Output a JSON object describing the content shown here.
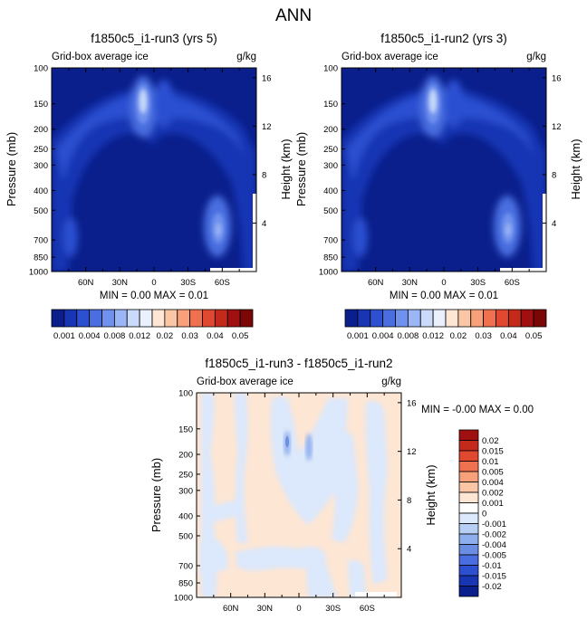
{
  "page_title": "ANN",
  "chart_data": [
    {
      "type": "heatmap",
      "title": "f1850c5_i1-run3 (yrs 5)",
      "subtitle_left": "Grid-box average ice",
      "subtitle_right": "g/kg",
      "ylabel": "Pressure (mb)",
      "ylabel_right": "Height (km)",
      "y_ticks": [
        "100",
        "150",
        "200",
        "250",
        "300",
        "400",
        "500",
        "700",
        "850",
        "1000"
      ],
      "y_right_ticks": [
        "16",
        "12",
        "8",
        "4"
      ],
      "x_ticks": [
        "60N",
        "30N",
        "0",
        "30S",
        "60S"
      ],
      "min_max": "MIN =  0.00  MAX =  0.01",
      "colorbar_labels": [
        "0.001",
        "0.004",
        "0.008",
        "0.012",
        "0.02",
        "0.03",
        "0.04",
        "0.05"
      ],
      "colorbar_colors": [
        "#0a1f8c",
        "#1836b4",
        "#2c50d0",
        "#4a6ee0",
        "#7092ee",
        "#9cb6f5",
        "#c9dafa",
        "#eaf1fd",
        "#fde6d4",
        "#fbc6a6",
        "#f7a07a",
        "#f07150",
        "#e04830",
        "#c42a1c",
        "#a01010",
        "#7a0606"
      ]
    },
    {
      "type": "heatmap",
      "title": "f1850c5_i1-run2 (yrs 3)",
      "subtitle_left": "Grid-box average ice",
      "subtitle_right": "g/kg",
      "ylabel": "Pressure (mb)",
      "ylabel_right": "Height (km)",
      "y_ticks": [
        "100",
        "150",
        "200",
        "250",
        "300",
        "400",
        "500",
        "700",
        "850",
        "1000"
      ],
      "y_right_ticks": [
        "16",
        "12",
        "8",
        "4"
      ],
      "x_ticks": [
        "60N",
        "30N",
        "0",
        "30S",
        "60S"
      ],
      "min_max": "MIN =  0.00  MAX =  0.01",
      "colorbar_labels": [
        "0.001",
        "0.004",
        "0.008",
        "0.012",
        "0.02",
        "0.03",
        "0.04",
        "0.05"
      ],
      "colorbar_colors": [
        "#0a1f8c",
        "#1836b4",
        "#2c50d0",
        "#4a6ee0",
        "#7092ee",
        "#9cb6f5",
        "#c9dafa",
        "#eaf1fd",
        "#fde6d4",
        "#fbc6a6",
        "#f7a07a",
        "#f07150",
        "#e04830",
        "#c42a1c",
        "#a01010",
        "#7a0606"
      ]
    },
    {
      "type": "heatmap",
      "title": "f1850c5_i1-run3 - f1850c5_i1-run2",
      "subtitle_left": "Grid-box average ice",
      "subtitle_right": "g/kg",
      "ylabel": "Pressure (mb)",
      "ylabel_right": "Height (km)",
      "y_ticks": [
        "100",
        "150",
        "200",
        "250",
        "300",
        "400",
        "500",
        "700",
        "850",
        "1000"
      ],
      "y_right_ticks": [
        "16",
        "12",
        "8",
        "4"
      ],
      "x_ticks": [
        "60N",
        "30N",
        "0",
        "30S",
        "60S"
      ],
      "min_max": "MIN = -0.00  MAX =  0.00",
      "colorbar_labels": [
        "0.02",
        "0.015",
        "0.01",
        "0.005",
        "0.004",
        "0.002",
        "0.001",
        "0",
        "-0.001",
        "-0.002",
        "-0.004",
        "-0.005",
        "-0.01",
        "-0.015",
        "-0.02"
      ],
      "colorbar_colors": [
        "#a01010",
        "#c42a1c",
        "#e04830",
        "#f07150",
        "#f7a07a",
        "#fbc6a6",
        "#fde6d4",
        "#ffffff",
        "#dce8fb",
        "#b8cff5",
        "#8eaeee",
        "#6a8ee4",
        "#4a6ee0",
        "#2c50d0",
        "#1836b4",
        "#0a1f8c"
      ]
    }
  ]
}
